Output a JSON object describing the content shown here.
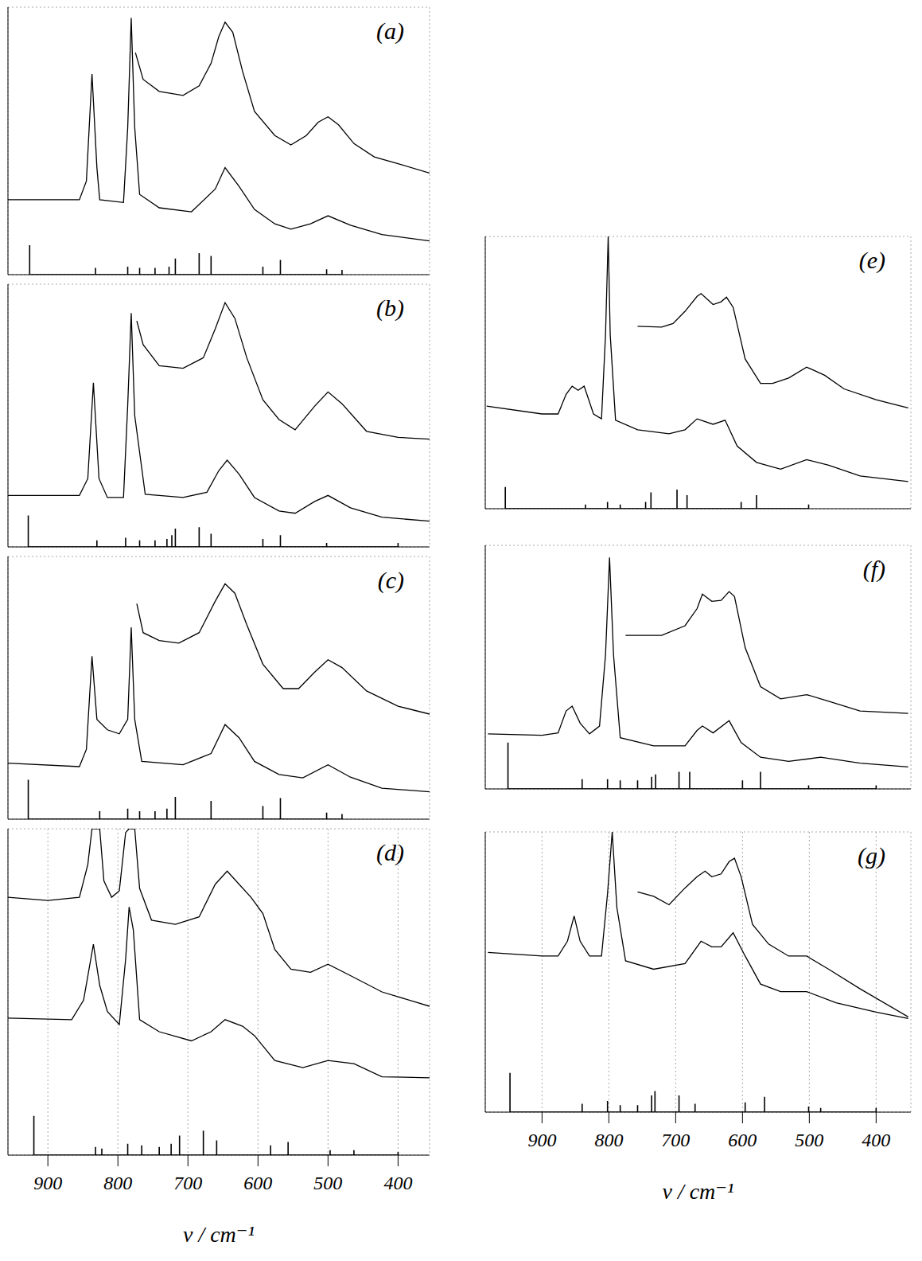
{
  "chart_data": [
    {
      "type": "line",
      "title": "(a)",
      "xlim": [
        957,
        355
      ],
      "xticks": [
        900,
        800,
        700,
        600,
        500,
        400
      ],
      "ylim": [
        0,
        100
      ],
      "yticks": [
        0,
        10,
        20,
        30,
        40,
        50,
        60,
        70,
        80,
        90,
        100
      ],
      "grid": true,
      "tick_labels": false,
      "series": [
        {
          "color": "#000000",
          "x": [
            775,
            764,
            741,
            707,
            684,
            667,
            656,
            647,
            636,
            622,
            605,
            576,
            553,
            531,
            514,
            500,
            485,
            463,
            434,
            400,
            355
          ],
          "values": [
            83,
            73,
            68.5,
            67,
            70.6,
            79,
            89,
            94.4,
            90.6,
            76,
            61,
            52,
            48.5,
            52,
            57,
            59,
            56,
            49,
            44,
            41.5,
            38
          ]
        },
        {
          "color": "#000000",
          "x": [
            957,
            855,
            845,
            837,
            830,
            826,
            792,
            786,
            781,
            776,
            769,
            741,
            695,
            661,
            647,
            627,
            605,
            576,
            553,
            525,
            500,
            468,
            423,
            355
          ],
          "values": [
            28,
            28,
            35,
            75,
            40,
            28,
            27,
            55,
            96,
            55,
            30,
            25,
            23.5,
            32,
            40,
            33,
            24.4,
            19,
            17,
            19,
            22,
            18.5,
            15,
            12.6
          ]
        },
        {
          "type": "stem",
          "color": "#000000",
          "x": [
            926,
            832,
            786,
            769,
            747,
            727,
            718,
            684,
            667,
            593,
            568,
            502,
            480
          ],
          "values": [
            11,
            2.5,
            3,
            2.5,
            2.5,
            3,
            6,
            8,
            7,
            3,
            5.5,
            2,
            1.8
          ]
        }
      ]
    },
    {
      "type": "line",
      "title": "(b)",
      "xlim": [
        957,
        355
      ],
      "xticks": [
        900,
        800,
        700,
        600,
        500,
        400
      ],
      "ylim": [
        0,
        100
      ],
      "yticks": [
        0,
        10,
        20,
        30,
        40,
        50,
        60,
        70,
        80,
        90,
        100
      ],
      "grid": true,
      "tick_labels": false,
      "series": [
        {
          "color": "#000000",
          "x": [
            773,
            764,
            741,
            707,
            678,
            661,
            647,
            633,
            616,
            593,
            570,
            547,
            519,
            500,
            480,
            445,
            400,
            355
          ],
          "values": [
            86,
            77,
            69,
            68,
            72,
            83,
            93,
            87,
            72,
            56,
            48.5,
            44.6,
            53.6,
            59,
            54.5,
            44,
            41.7,
            41
          ]
        },
        {
          "color": "#000000",
          "x": [
            957,
            855,
            843,
            835,
            827,
            815,
            792,
            786,
            781,
            776,
            761,
            707,
            673,
            656,
            644,
            627,
            605,
            570,
            547,
            519,
            500,
            468,
            423,
            355
          ],
          "values": [
            19.6,
            19.6,
            26,
            62.5,
            26,
            18.8,
            18.8,
            54,
            89,
            50,
            20,
            18.8,
            20.8,
            29,
            33,
            27.7,
            18.8,
            13.7,
            12.8,
            17.3,
            19.6,
            14.9,
            11.3,
            9.8
          ]
        },
        {
          "type": "stem",
          "color": "#000000",
          "x": [
            928,
            830,
            789,
            769,
            747,
            730,
            723,
            718,
            684,
            667,
            593,
            568,
            502,
            400
          ],
          "values": [
            12,
            2.5,
            3.5,
            2.5,
            2.5,
            3,
            4.5,
            7,
            7.5,
            5,
            3,
            4.5,
            1.5,
            1.5
          ]
        }
      ]
    },
    {
      "type": "line",
      "title": "(c)",
      "xlim": [
        957,
        355
      ],
      "xticks": [
        900,
        800,
        700,
        600,
        500,
        400
      ],
      "ylim": [
        0,
        100
      ],
      "yticks": [
        0,
        10,
        20,
        30,
        40,
        50,
        60,
        70,
        80,
        90,
        100
      ],
      "grid": true,
      "tick_labels": false,
      "series": [
        {
          "color": "#000000",
          "x": [
            773,
            764,
            741,
            713,
            684,
            661,
            647,
            633,
            616,
            593,
            564,
            542,
            519,
            500,
            480,
            445,
            400,
            355
          ],
          "values": [
            82,
            71,
            68,
            67,
            71,
            83,
            89.6,
            86,
            74,
            59,
            49.7,
            49.7,
            56,
            60.7,
            57.7,
            48.8,
            43,
            40
          ]
        },
        {
          "color": "#000000",
          "x": [
            957,
            855,
            845,
            837,
            830,
            815,
            798,
            786,
            781,
            776,
            766,
            707,
            667,
            647,
            627,
            605,
            570,
            536,
            500,
            468,
            423,
            355
          ],
          "values": [
            21.3,
            20,
            26.6,
            62,
            38,
            34,
            32.5,
            38,
            73,
            38,
            22,
            20.7,
            25,
            36,
            31,
            22,
            17,
            15.7,
            20.7,
            16,
            11.8,
            10.4
          ]
        },
        {
          "type": "stem",
          "color": "#000000",
          "x": [
            928,
            826,
            786,
            769,
            747,
            730,
            718,
            667,
            593,
            568,
            502,
            480
          ],
          "values": [
            15,
            3,
            4,
            3,
            3,
            4,
            8.5,
            7,
            5,
            8,
            2.5,
            2
          ]
        }
      ]
    },
    {
      "type": "line",
      "title": "(d)",
      "x_label": "ν / cm⁻¹",
      "xlim": [
        957,
        355
      ],
      "xticks": [
        900,
        800,
        700,
        600,
        500,
        400
      ],
      "ylim": [
        0,
        100
      ],
      "yticks": [
        0,
        10,
        20,
        30,
        40,
        50,
        60,
        70,
        80,
        90,
        100
      ],
      "grid": true,
      "tick_labels": "x",
      "series": [
        {
          "color": "#000000",
          "x": [
            957,
            900,
            855,
            843,
            837,
            826,
            820,
            809,
            798,
            789,
            784,
            776,
            769,
            752,
            718,
            684,
            661,
            644,
            627,
            610,
            593,
            576,
            553,
            525,
            500,
            468,
            423,
            355
          ],
          "values": [
            79,
            78,
            79,
            89,
            100,
            100,
            84,
            79,
            81,
            98.8,
            100,
            100,
            81.7,
            72,
            70.7,
            73,
            83,
            87,
            83,
            79,
            74,
            63,
            57,
            56,
            58.5,
            55,
            50,
            45.6
          ]
        },
        {
          "color": "#000000",
          "x": [
            957,
            866,
            849,
            835,
            826,
            815,
            798,
            789,
            784,
            778,
            769,
            741,
            695,
            667,
            647,
            622,
            605,
            576,
            536,
            500,
            463,
            423,
            355
          ],
          "values": [
            42,
            41.5,
            47.5,
            64.6,
            52,
            44,
            40,
            60,
            76,
            69,
            41.5,
            37.8,
            35,
            37.8,
            41.5,
            39.5,
            36.6,
            29,
            26.8,
            29,
            28,
            24,
            23.7
          ]
        },
        {
          "type": "stem",
          "color": "#000000",
          "x": [
            920,
            832,
            823,
            786,
            766,
            741,
            724,
            712,
            678,
            659,
            582,
            557,
            497,
            463,
            400
          ],
          "values": [
            12,
            2.5,
            2,
            3.5,
            3,
            2.5,
            3.5,
            6,
            7.5,
            4.5,
            3,
            4,
            1.5,
            1.5,
            1
          ]
        }
      ]
    },
    {
      "type": "line",
      "title": "(e)",
      "xlim": [
        985,
        348
      ],
      "xticks": [
        900,
        800,
        700,
        600,
        500,
        400
      ],
      "ylim": [
        0,
        100
      ],
      "yticks": [
        0,
        10,
        20,
        30,
        40,
        50,
        60,
        70,
        80,
        90,
        100
      ],
      "grid": true,
      "tick_labels": false,
      "series": [
        {
          "color": "#000000",
          "x": [
            757,
            721,
            704,
            686,
            668,
            662,
            644,
            632,
            624,
            614,
            596,
            573,
            555,
            531,
            504,
            477,
            448,
            400,
            352
          ],
          "values": [
            67,
            66.7,
            68,
            72.5,
            78,
            79,
            75,
            76,
            77.7,
            74,
            55,
            46,
            46,
            48,
            52,
            49,
            44,
            40,
            37
          ]
        },
        {
          "color": "#000000",
          "x": [
            983,
            900,
            876,
            864,
            855,
            846,
            837,
            823,
            811,
            805,
            801,
            798,
            790,
            757,
            710,
            686,
            668,
            644,
            626,
            608,
            579,
            543,
            504,
            471,
            424,
            352
          ],
          "values": [
            37.7,
            34.8,
            34.8,
            42,
            45,
            43.5,
            45,
            34.8,
            33,
            64,
            100,
            64,
            32.5,
            29,
            27.5,
            29,
            33,
            31,
            32.5,
            23,
            17,
            14.5,
            18,
            16,
            12,
            10
          ]
        },
        {
          "type": "stem",
          "color": "#000000",
          "x": [
            955,
            835,
            802,
            783,
            745,
            737,
            698,
            683,
            602,
            579,
            501
          ],
          "values": [
            8,
            1.5,
            2.5,
            1.5,
            2.5,
            6,
            7,
            5,
            2.5,
            5,
            1.5
          ]
        }
      ]
    },
    {
      "type": "line",
      "title": "(f)",
      "xlim": [
        985,
        348
      ],
      "xticks": [
        900,
        800,
        700,
        600,
        500,
        400
      ],
      "ylim": [
        0,
        100
      ],
      "yticks": [
        0,
        10,
        20,
        30,
        40,
        50,
        60,
        70,
        80,
        90,
        100
      ],
      "grid": true,
      "tick_labels": false,
      "series": [
        {
          "color": "#000000",
          "x": [
            775,
            721,
            686,
            668,
            660,
            646,
            632,
            620,
            612,
            596,
            573,
            543,
            504,
            471,
            424,
            352
          ],
          "values": [
            63,
            63,
            67,
            74,
            80,
            77,
            77.4,
            81,
            79,
            58,
            42,
            37,
            38.7,
            36,
            32,
            31
          ]
        },
        {
          "color": "#000000",
          "x": [
            981,
            900,
            876,
            864,
            855,
            843,
            829,
            814,
            805,
            799,
            793,
            783,
            733,
            686,
            668,
            660,
            644,
            620,
            602,
            573,
            531,
            483,
            424,
            352
          ],
          "values": [
            22.6,
            22,
            23,
            32,
            34,
            27,
            22.6,
            25.8,
            55,
            95,
            55,
            21,
            17.7,
            17.7,
            24,
            25.8,
            23,
            28,
            19,
            13,
            11.3,
            13,
            10.6,
            9
          ]
        },
        {
          "type": "stem",
          "color": "#000000",
          "x": [
            951,
            840,
            802,
            783,
            757,
            736,
            730,
            695,
            679,
            600,
            573,
            501,
            400
          ],
          "values": [
            19,
            4,
            4,
            3.5,
            3.5,
            5,
            6,
            7,
            7,
            3.5,
            7,
            1.5,
            1.5
          ]
        }
      ]
    },
    {
      "type": "line",
      "title": "(g)",
      "x_label": "ν / cm⁻¹",
      "xlim": [
        985,
        348
      ],
      "xticks": [
        900,
        800,
        700,
        600,
        500,
        400
      ],
      "ylim": [
        0,
        100
      ],
      "yticks": [
        0,
        10,
        20,
        30,
        40,
        50,
        60,
        70,
        80,
        90,
        100
      ],
      "grid": true,
      "tick_labels": "x",
      "series": [
        {
          "color": "#000000",
          "x": [
            757,
            733,
            710,
            686,
            668,
            656,
            646,
            632,
            620,
            612,
            602,
            585,
            561,
            531,
            504,
            471,
            424,
            352
          ],
          "values": [
            78.6,
            77,
            74,
            80,
            84,
            86,
            84,
            85,
            89.4,
            90.6,
            84,
            67,
            60,
            55.7,
            55.7,
            51,
            44,
            34
          ]
        },
        {
          "color": "#000000",
          "x": [
            981,
            900,
            876,
            862,
            852,
            843,
            829,
            811,
            802,
            795,
            788,
            775,
            733,
            686,
            662,
            646,
            632,
            614,
            596,
            573,
            543,
            504,
            460,
            400,
            352
          ],
          "values": [
            57,
            55.7,
            55.7,
            61,
            70,
            61,
            55.7,
            55.7,
            78,
            100,
            73,
            54,
            51,
            53,
            61,
            59,
            59,
            64,
            55.7,
            45.7,
            43,
            43,
            39,
            35.7,
            33.4
          ]
        },
        {
          "type": "stem",
          "color": "#000000",
          "x": [
            948,
            840,
            802,
            783,
            757,
            736,
            731,
            695,
            671,
            596,
            567,
            501,
            483,
            400
          ],
          "values": [
            14,
            3,
            4,
            2.5,
            2.5,
            6,
            7.5,
            6,
            3,
            3.5,
            5.5,
            2,
            1.5,
            1.5
          ]
        }
      ]
    }
  ]
}
